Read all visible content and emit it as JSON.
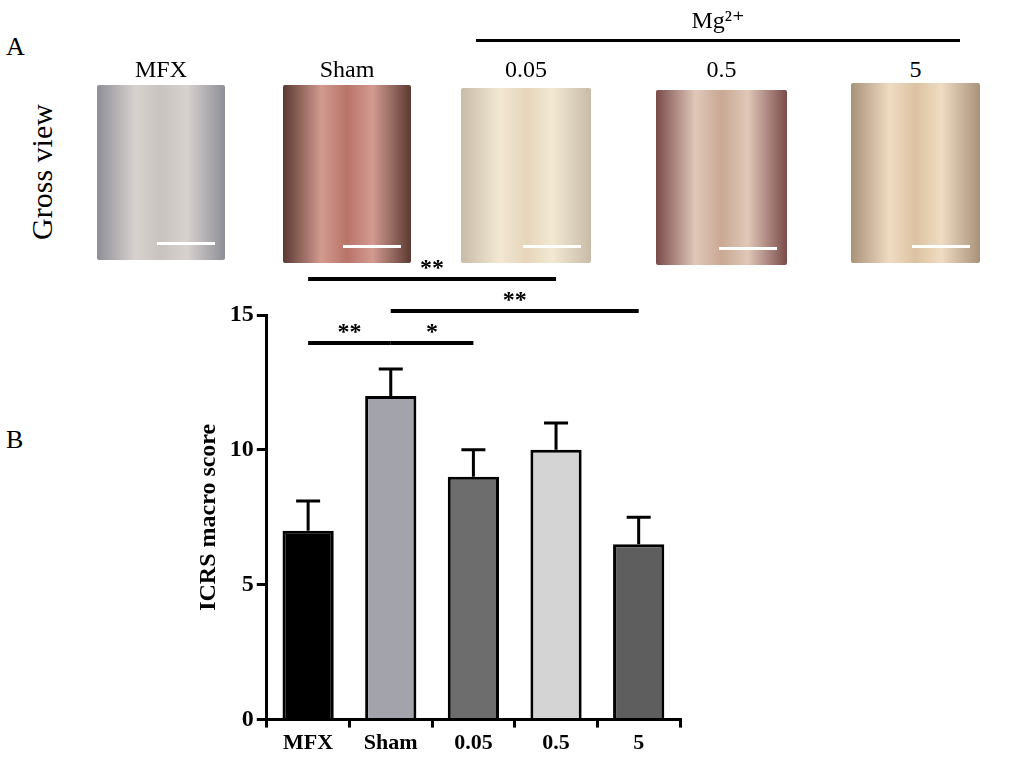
{
  "panel_a": {
    "label": "A",
    "row_label": "Gross view",
    "images": [
      "MFX",
      "Sham",
      "0.05",
      "0.5",
      "5"
    ],
    "group": {
      "label": "Mg²⁺",
      "members": [
        "0.05",
        "0.5",
        "5"
      ]
    }
  },
  "chart_data": {
    "panel_label": "B",
    "type": "bar",
    "categories": [
      "MFX",
      "Sham",
      "0.05",
      "0.5",
      "5"
    ],
    "values": [
      7,
      12,
      9,
      10,
      6.5
    ],
    "errors": [
      1.1,
      1,
      1,
      1,
      1
    ],
    "colors": [
      "#000000",
      "#a3a3ab",
      "#6d6d6d",
      "#d4d4d4",
      "#5e5e5e"
    ],
    "y_label": "ICRS macro score",
    "ylim": [
      0,
      15
    ],
    "yticks": [
      0,
      5,
      10,
      15
    ],
    "grid": false,
    "significance": [
      {
        "from": "MFX",
        "to": "Sham",
        "label": "**"
      },
      {
        "from": "Sham",
        "to": "0.05",
        "label": "*"
      },
      {
        "from": "Sham",
        "to": "5",
        "label": "**"
      },
      {
        "from": "MFX",
        "to": "0.5",
        "label": "**"
      }
    ]
  }
}
